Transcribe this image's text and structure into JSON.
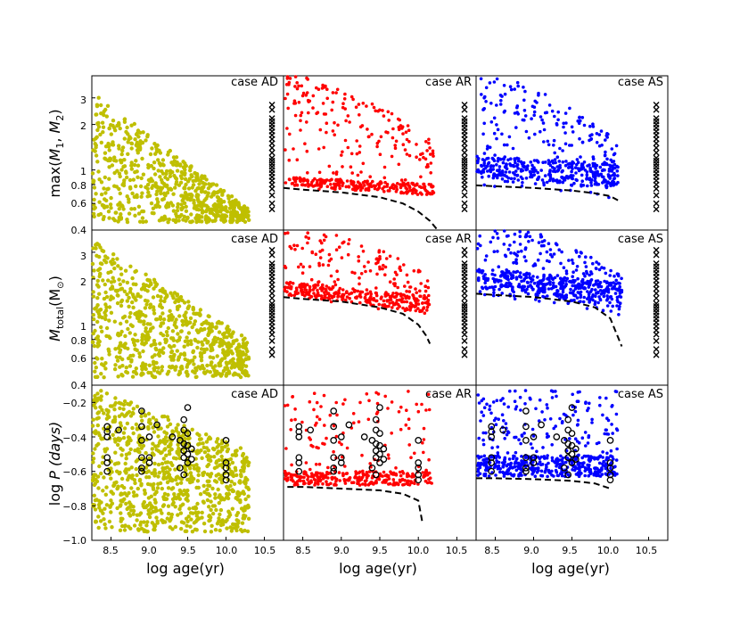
{
  "figure": {
    "x_axis_label": "log age(yr)",
    "row_labels": {
      "row1": {
        "prefix": "max(",
        "m1": "M",
        "sub1": "1",
        "sep": ", ",
        "m2": "M",
        "sub2": "2",
        "suffix": ")"
      },
      "row2": {
        "m": "M",
        "sub": "total",
        "unit": "(M",
        "sun": "⊙",
        "close": ")"
      },
      "row3": {
        "prefix": "log ",
        "p": "P",
        "paren": " (days)"
      }
    },
    "column_titles": [
      "case AD",
      "case AR",
      "case AS"
    ],
    "x_ticks": [
      "8.5",
      "9.0",
      "9.5",
      "10.0",
      "10.5"
    ],
    "row1_y_ticks": [
      "0.4",
      "0.6",
      "0.8",
      "1",
      "2",
      "3"
    ],
    "row2_y_ticks": [
      "0.4",
      "0.6",
      "0.8",
      "1",
      "2",
      "3"
    ],
    "row3_y_ticks": [
      "−1.0",
      "−0.8",
      "−0.6",
      "−0.4",
      "−0.2"
    ]
  },
  "chart_data": [
    {
      "type": "scatter",
      "panel": "row1-AD",
      "title": "case AD",
      "ylabel": "max(M1, M2)",
      "xlabel": "",
      "xlim": [
        8.25,
        10.75
      ],
      "ylim": [
        0.4,
        4.2
      ],
      "yscale": "log",
      "color": "#bfbf00",
      "markers": "filled circles; cross markers at log age 10.6 (observed values)",
      "series": [
        {
          "name": "",
          "region": "dense model cloud from log age 8.25 to 10.3, masses 0.45–3.3"
        }
      ]
    },
    {
      "type": "scatter",
      "panel": "row1-AR",
      "title": "case AR",
      "ylabel": "max(M1, M2)",
      "xlim": [
        8.25,
        10.75
      ],
      "ylim": [
        0.4,
        4.2
      ],
      "yscale": "log",
      "color": "#ff0000",
      "limit_curve": {
        "x": [
          8.25,
          8.5,
          9.0,
          9.5,
          9.8,
          10.0,
          10.15,
          10.25
        ],
        "y": [
          0.76,
          0.74,
          0.71,
          0.66,
          0.6,
          0.53,
          0.46,
          0.4
        ]
      }
    },
    {
      "type": "scatter",
      "panel": "row1-AS",
      "title": "case AS",
      "ylabel": "max(M1, M2)",
      "xlim": [
        8.25,
        10.75
      ],
      "ylim": [
        0.4,
        4.2
      ],
      "yscale": "log",
      "color": "#0000ff",
      "limit_curve": {
        "x": [
          8.25,
          8.5,
          9.0,
          9.5,
          9.8,
          10.0,
          10.1
        ],
        "y": [
          0.79,
          0.78,
          0.76,
          0.73,
          0.7,
          0.67,
          0.63
        ]
      }
    },
    {
      "type": "scatter",
      "panel": "row2-AD",
      "title": "case AD",
      "ylabel": "Mtotal(Msun)",
      "xlim": [
        8.25,
        10.75
      ],
      "ylim": [
        0.4,
        4.2
      ],
      "yscale": "log",
      "color": "#bfbf00"
    },
    {
      "type": "scatter",
      "panel": "row2-AR",
      "title": "case AR",
      "ylabel": "Mtotal(Msun)",
      "xlim": [
        8.25,
        10.75
      ],
      "ylim": [
        0.4,
        4.2
      ],
      "yscale": "log",
      "color": "#ff0000",
      "limit_curve": {
        "x": [
          8.25,
          8.5,
          9.0,
          9.5,
          9.8,
          10.0,
          10.1,
          10.15
        ],
        "y": [
          1.52,
          1.48,
          1.42,
          1.3,
          1.18,
          1.0,
          0.85,
          0.75
        ]
      }
    },
    {
      "type": "scatter",
      "panel": "row2-AS",
      "title": "case AS",
      "ylabel": "Mtotal(Msun)",
      "xlim": [
        8.25,
        10.75
      ],
      "ylim": [
        0.4,
        4.2
      ],
      "yscale": "log",
      "color": "#0000ff",
      "limit_curve": {
        "x": [
          8.25,
          8.5,
          9.0,
          9.5,
          9.8,
          10.0,
          10.15
        ],
        "y": [
          1.6,
          1.57,
          1.52,
          1.42,
          1.3,
          1.1,
          0.72
        ]
      }
    },
    {
      "type": "scatter",
      "panel": "row3-AD",
      "title": "case AD",
      "ylabel": "log P (days)",
      "xlim": [
        8.25,
        10.75
      ],
      "ylim": [
        -1.0,
        -0.1
      ],
      "color": "#bfbf00",
      "open_circles": "observed systems"
    },
    {
      "type": "scatter",
      "panel": "row3-AR",
      "title": "case AR",
      "ylabel": "log P (days)",
      "xlim": [
        8.25,
        10.75
      ],
      "ylim": [
        -1.0,
        -0.1
      ],
      "color": "#ff0000",
      "limit_curve": {
        "x": [
          8.3,
          8.5,
          9.0,
          9.5,
          9.8,
          10.0,
          10.05
        ],
        "y": [
          -0.69,
          -0.69,
          -0.7,
          -0.71,
          -0.73,
          -0.77,
          -0.89
        ]
      }
    },
    {
      "type": "scatter",
      "panel": "row3-AS",
      "title": "case AS",
      "ylabel": "log P (days)",
      "xlim": [
        8.25,
        10.75
      ],
      "ylim": [
        -1.0,
        -0.1
      ],
      "color": "#0000ff",
      "limit_curve": {
        "x": [
          8.25,
          8.5,
          9.0,
          9.5,
          9.8,
          10.0
        ],
        "y": [
          -0.64,
          -0.64,
          -0.645,
          -0.655,
          -0.67,
          -0.7
        ]
      }
    }
  ]
}
